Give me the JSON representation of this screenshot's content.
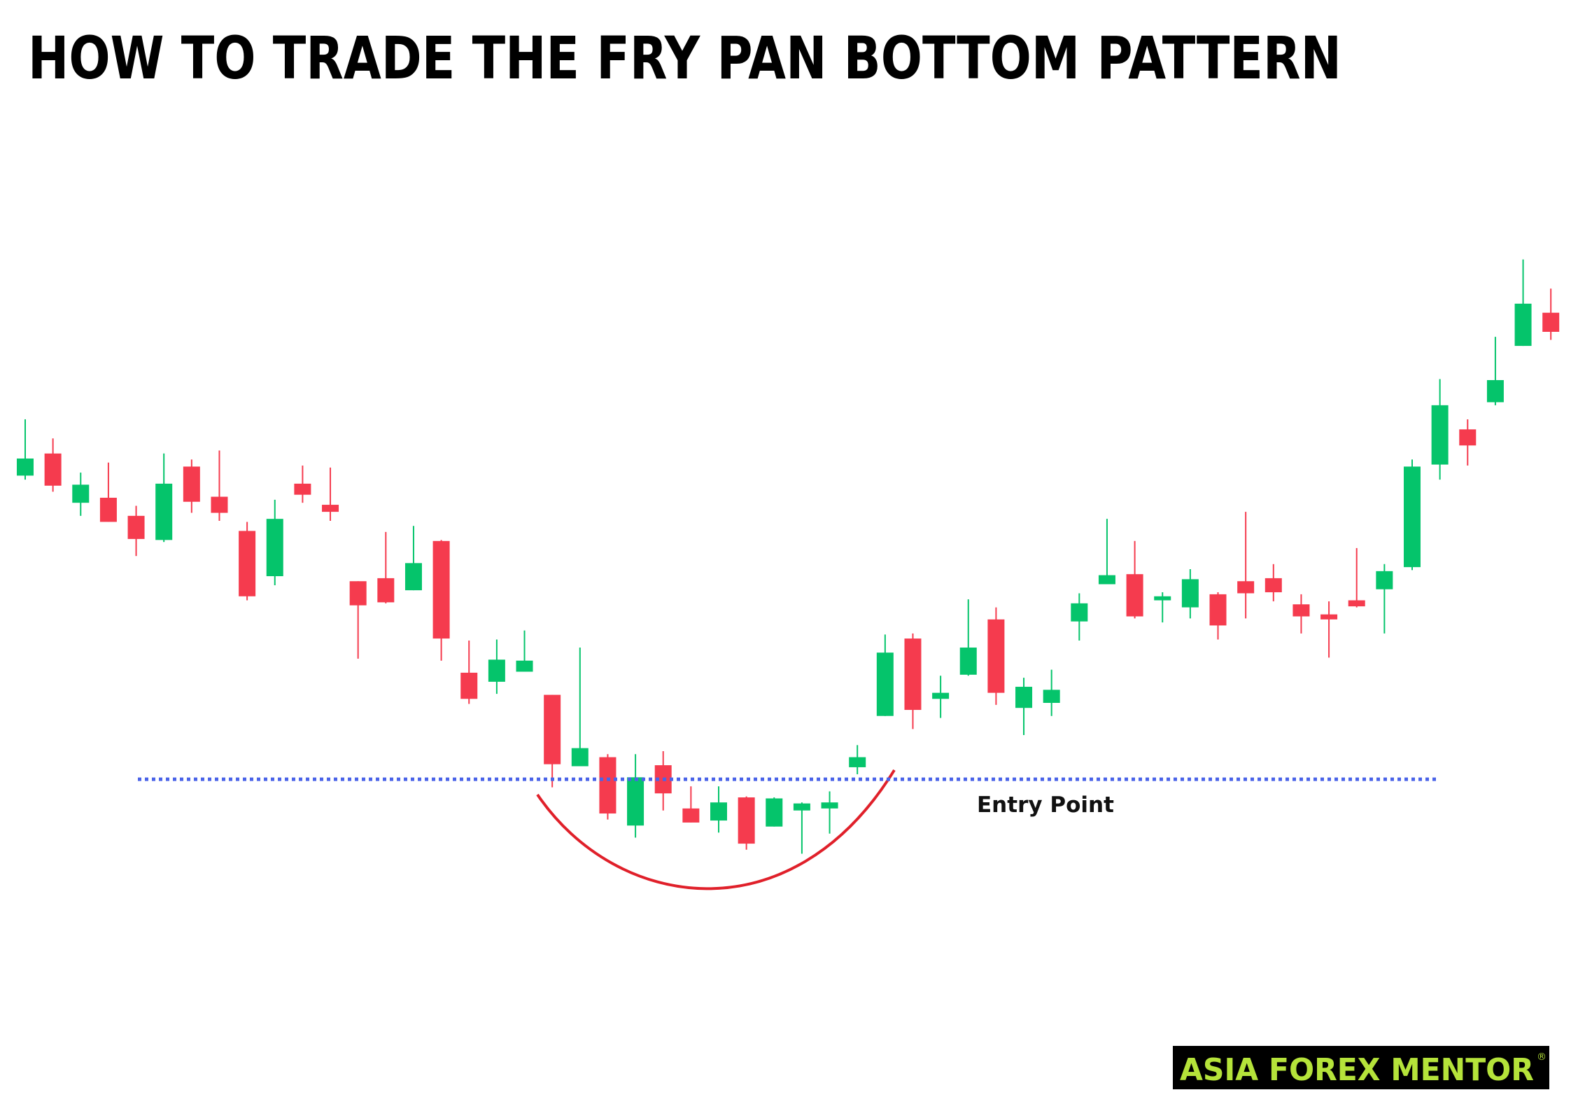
{
  "chart_data": {
    "type": "candlestick",
    "title": "HOW TO TRADE THE FRY PAN BOTTOM PATTERN",
    "up_color": "#05c46b",
    "down_color": "#f53b4e",
    "open": [
      62.7,
      64.9,
      60.0,
      60.5,
      58.7,
      56.3,
      63.6,
      60.6,
      57.2,
      52.7,
      61.9,
      59.8,
      52.2,
      52.5,
      51.3,
      56.2,
      43.1,
      42.2,
      43.2,
      40.9,
      33.8,
      34.7,
      27.9,
      33.9,
      29.6,
      28.4,
      30.7,
      27.8,
      29.4,
      29.6,
      33.7,
      38.8,
      46.5,
      40.5,
      42.9,
      48.4,
      39.6,
      40.1,
      48.2,
      51.9,
      52.9,
      50.3,
      49.6,
      50.9,
      52.2,
      52.5,
      49.9,
      48.9,
      50.3,
      51.4,
      53.6,
      63.8,
      67.3,
      70.0,
      75.6,
      78.9
    ],
    "high": [
      68.3,
      66.4,
      63.0,
      64.0,
      59.7,
      64.9,
      64.3,
      65.2,
      58.1,
      60.3,
      63.7,
      63.5,
      52.2,
      57.1,
      57.7,
      56.3,
      46.3,
      46.4,
      47.3,
      40.9,
      45.6,
      35.0,
      35.0,
      35.3,
      31.8,
      31.8,
      30.8,
      30.7,
      30.2,
      31.3,
      35.9,
      46.9,
      47.0,
      42.8,
      50.4,
      49.6,
      42.6,
      43.4,
      51.0,
      58.4,
      56.2,
      51.1,
      53.4,
      51.1,
      59.1,
      53.9,
      50.9,
      50.2,
      55.5,
      53.9,
      64.3,
      72.3,
      68.3,
      76.5,
      84.2,
      81.3
    ],
    "low": [
      62.3,
      61.1,
      58.7,
      58.1,
      54.7,
      56.1,
      59.0,
      58.2,
      50.3,
      51.8,
      60.0,
      58.2,
      44.5,
      50.0,
      51.3,
      44.3,
      40.0,
      41.0,
      43.2,
      31.7,
      33.8,
      28.5,
      26.7,
      29.4,
      28.2,
      27.2,
      25.5,
      27.8,
      25.1,
      27.1,
      33.0,
      38.8,
      37.5,
      38.6,
      42.8,
      39.9,
      36.9,
      38.8,
      46.3,
      51.9,
      48.5,
      48.1,
      48.5,
      46.4,
      48.5,
      50.2,
      47.0,
      44.6,
      49.6,
      47.0,
      53.3,
      62.3,
      63.7,
      69.7,
      75.6,
      76.2
    ],
    "close": [
      64.4,
      61.7,
      61.8,
      58.1,
      56.4,
      61.9,
      60.1,
      59.0,
      50.7,
      58.4,
      60.8,
      59.1,
      49.8,
      50.1,
      54.0,
      46.5,
      40.5,
      44.4,
      44.3,
      34.0,
      35.6,
      29.1,
      32.7,
      31.1,
      28.2,
      30.2,
      26.1,
      30.6,
      30.1,
      30.2,
      34.7,
      45.1,
      39.4,
      41.1,
      45.6,
      41.1,
      41.7,
      41.4,
      50.0,
      52.8,
      48.7,
      50.7,
      52.4,
      47.8,
      51.0,
      51.1,
      48.7,
      48.4,
      49.7,
      53.2,
      63.6,
      69.7,
      65.7,
      72.2,
      79.8,
      77.0
    ],
    "ylim": [
      0,
      110
    ],
    "entry": {
      "value": 32.5,
      "label": "Entry Point",
      "color": "#4a63e8"
    },
    "pattern_color": "#e0202a"
  },
  "logo": {
    "text": "ASIA FOREX MENTOR",
    "mark": "®"
  }
}
